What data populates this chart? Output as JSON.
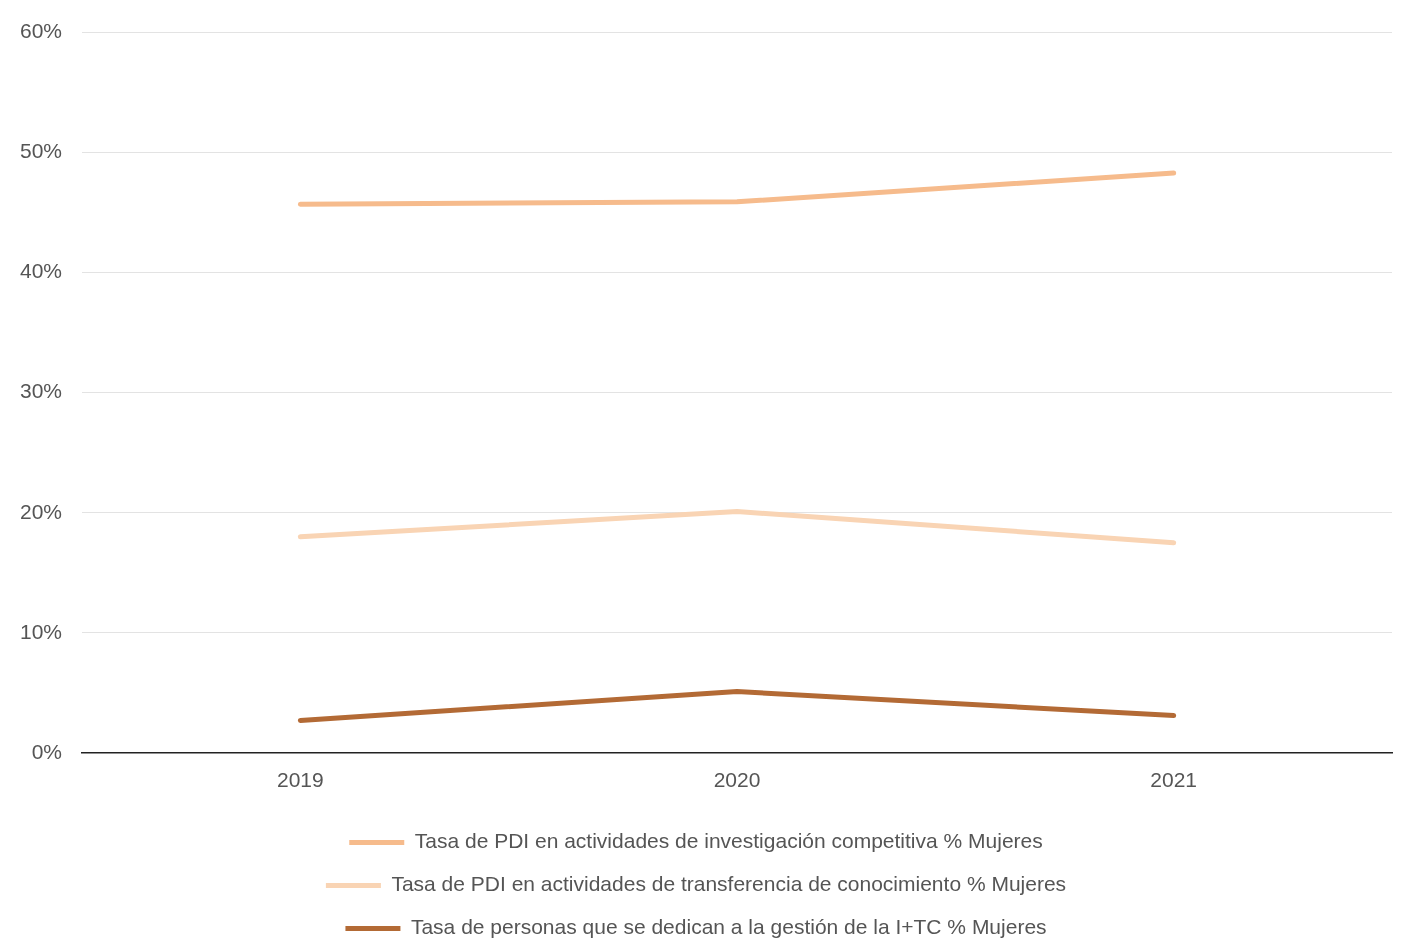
{
  "chart_data": {
    "type": "line",
    "categories": [
      "2019",
      "2020",
      "2021"
    ],
    "series": [
      {
        "name": "Tasa de PDI en actividades de investigación competitiva % Mujeres",
        "color": "#f6bb8c",
        "values": [
          45.7,
          45.9,
          48.3
        ]
      },
      {
        "name": "Tasa de PDI en actividades de transferencia de conocimiento % Mujeres",
        "color": "#f9d4b4",
        "values": [
          18.0,
          20.1,
          17.5
        ]
      },
      {
        "name": "Tasa de personas que se dedican a la gestión de la I+TC % Mujeres",
        "color": "#b36a35",
        "values": [
          2.7,
          5.1,
          3.1
        ]
      }
    ],
    "ylim": [
      0,
      60
    ],
    "yticks": [
      {
        "value": 0,
        "label": "0%"
      },
      {
        "value": 10,
        "label": "10%"
      },
      {
        "value": 20,
        "label": "20%"
      },
      {
        "value": 30,
        "label": "30%"
      },
      {
        "value": 40,
        "label": "40%"
      },
      {
        "value": 50,
        "label": "50%"
      },
      {
        "value": 60,
        "label": "60%"
      }
    ],
    "grid": "y",
    "legend": "bottom",
    "marker": "none",
    "line_style": "solid"
  }
}
